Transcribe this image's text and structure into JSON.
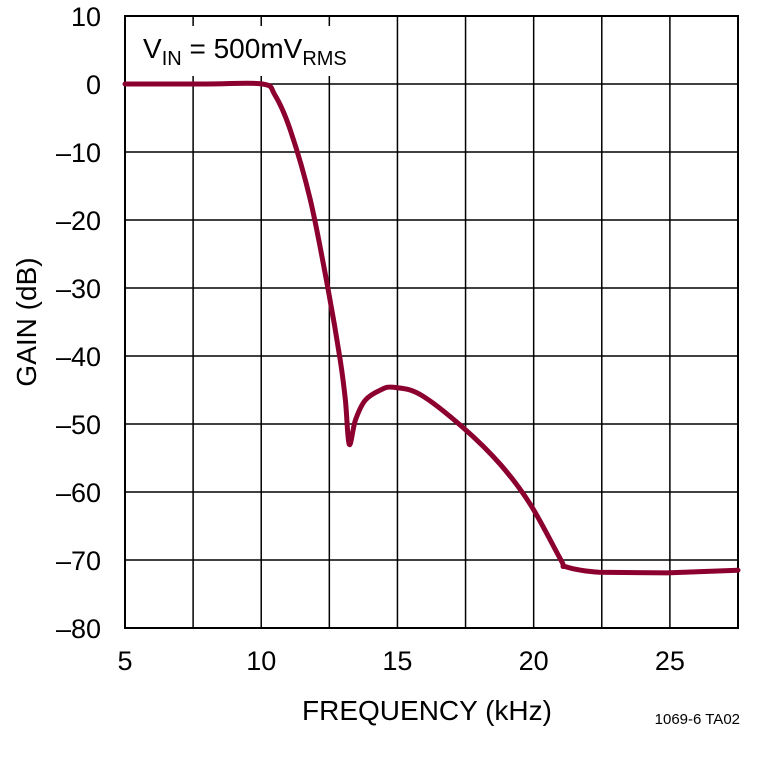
{
  "chart_data": {
    "type": "line",
    "title": "",
    "annotation": {
      "main": "V",
      "sub1": "IN",
      "mid": " = 500mV",
      "sub2": "RMS"
    },
    "xlabel": "FREQUENCY (kHz)",
    "ylabel": "GAIN (dB)",
    "xlim": [
      5,
      27.5
    ],
    "ylim": [
      -80,
      10
    ],
    "xticks": [
      5,
      10,
      15,
      20,
      25
    ],
    "xtick_labels": [
      "5",
      "10",
      "15",
      "20",
      "25"
    ],
    "yticks": [
      10,
      0,
      -10,
      -20,
      -30,
      -40,
      -50,
      -60,
      -70,
      -80
    ],
    "ytick_labels": [
      "10",
      "0",
      "–10",
      "–20",
      "–30",
      "–40",
      "–50",
      "–60",
      "–70",
      "–80"
    ],
    "x_gridlines": [
      7.5,
      10,
      12.5,
      15,
      17.5,
      20,
      22.5,
      25
    ],
    "grid": true,
    "footnote": "1069-6 TA02",
    "series": [
      {
        "name": "Gain",
        "color": "#8c0030",
        "x": [
          5,
          8,
          10.04,
          10.5,
          11.07,
          11.8,
          12.46,
          12.9,
          13.09,
          13.23,
          13.46,
          13.82,
          14.38,
          14.85,
          15.85,
          17.43,
          18.79,
          19.89,
          21.0,
          21.18,
          22.4,
          24.9,
          27.5
        ],
        "y": [
          0,
          0,
          0,
          -1.6,
          -6.8,
          -17,
          -30.3,
          -40.6,
          -46.5,
          -53,
          -49.4,
          -46.5,
          -45,
          -44.6,
          -45.7,
          -50.6,
          -56,
          -61.9,
          -70,
          -71,
          -71.8,
          -71.9,
          -71.5
        ]
      }
    ]
  }
}
